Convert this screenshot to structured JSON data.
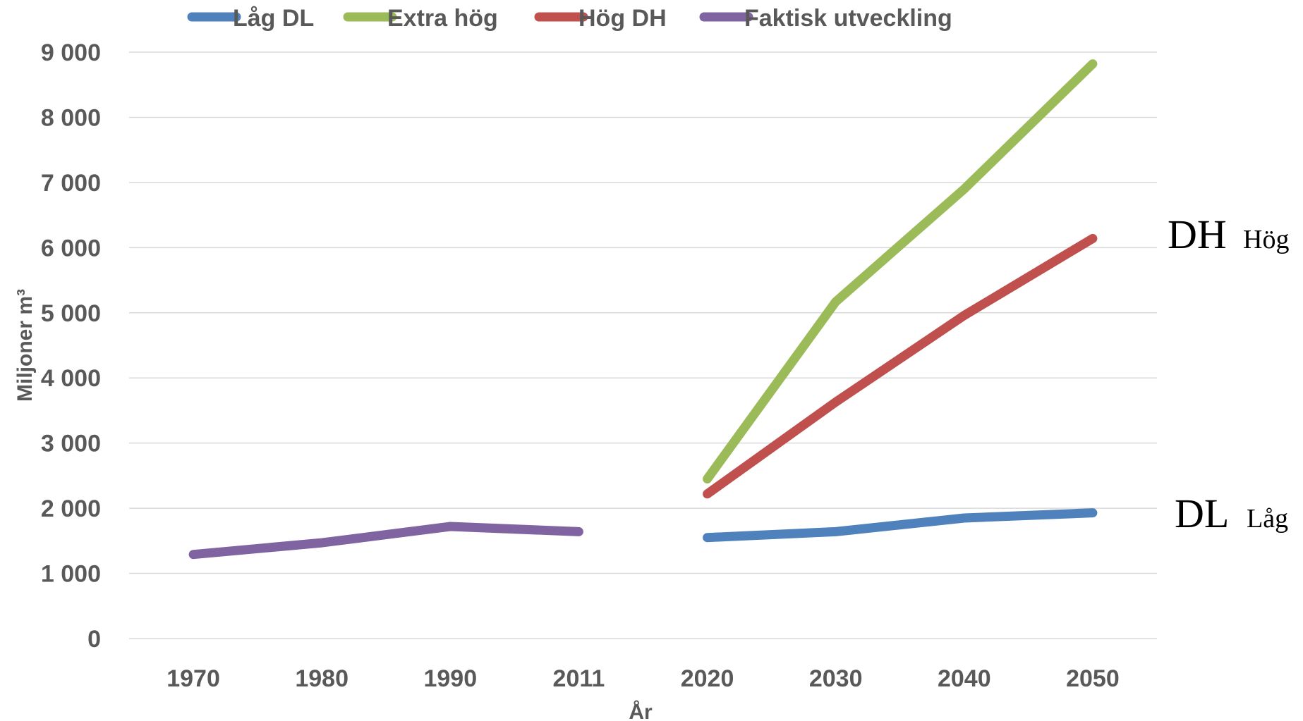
{
  "chart_data": {
    "type": "line",
    "xlabel": "År",
    "ylabel": "Miljoner m³",
    "ylim": [
      0,
      9000
    ],
    "yticks": [
      0,
      1000,
      2000,
      3000,
      4000,
      5000,
      6000,
      7000,
      8000,
      9000
    ],
    "ytick_labels": [
      "0",
      "1 000",
      "2 000",
      "3 000",
      "4 000",
      "5 000",
      "6 000",
      "7 000",
      "8 000",
      "9 000"
    ],
    "categories": [
      "1970",
      "1980",
      "1990",
      "2011",
      "2020",
      "2030",
      "2040",
      "2050"
    ],
    "grid": true,
    "legend_position": "top",
    "series": [
      {
        "name": "Låg DL",
        "color": "#4f81bd",
        "values": [
          null,
          null,
          null,
          null,
          1550,
          1640,
          1850,
          1930
        ]
      },
      {
        "name": "Extra hög",
        "color": "#9bbb59",
        "values": [
          null,
          null,
          null,
          null,
          2450,
          5170,
          6900,
          8820
        ]
      },
      {
        "name": "Hög DH",
        "color": "#c0504d",
        "values": [
          null,
          null,
          null,
          null,
          2220,
          3630,
          4960,
          6140
        ]
      },
      {
        "name": "Faktisk utveckling",
        "color": "#8064a2",
        "values": [
          1290,
          1470,
          1720,
          1640,
          null,
          null,
          null,
          null
        ]
      }
    ],
    "annotations": [
      {
        "main": "DH",
        "sub": "Hög",
        "color": "#000000"
      },
      {
        "main": "DL",
        "sub": "Låg",
        "color": "#000000"
      }
    ]
  }
}
